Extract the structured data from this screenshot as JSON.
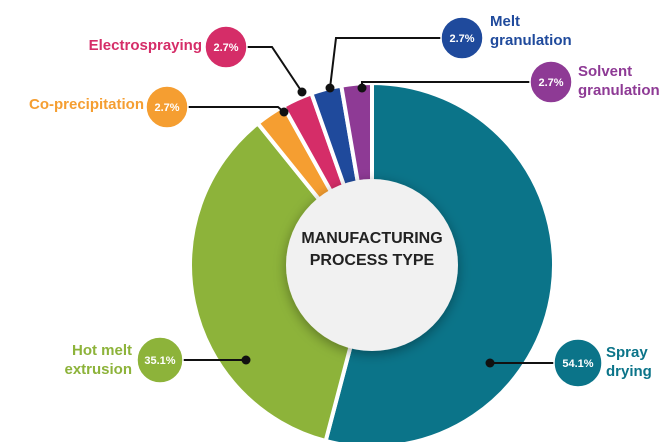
{
  "chart_data": {
    "type": "donut",
    "center_label": "MANUFACTURING PROCESS TYPE",
    "categories": [
      "Spray drying",
      "Hot melt extrusion",
      "Co-precipitation",
      "Electrospraying",
      "Melt granulation",
      "Solvent granulation"
    ],
    "values": [
      54.1,
      35.1,
      2.7,
      2.7,
      2.7,
      2.7
    ],
    "value_labels": [
      "54.1%",
      "35.1%",
      "2.7%",
      "2.7%",
      "2.7%",
      "2.7%"
    ],
    "colors": [
      "#0b7489",
      "#8db33a",
      "#f59e31",
      "#d52d68",
      "#1f4a9c",
      "#8e3a95"
    ]
  }
}
